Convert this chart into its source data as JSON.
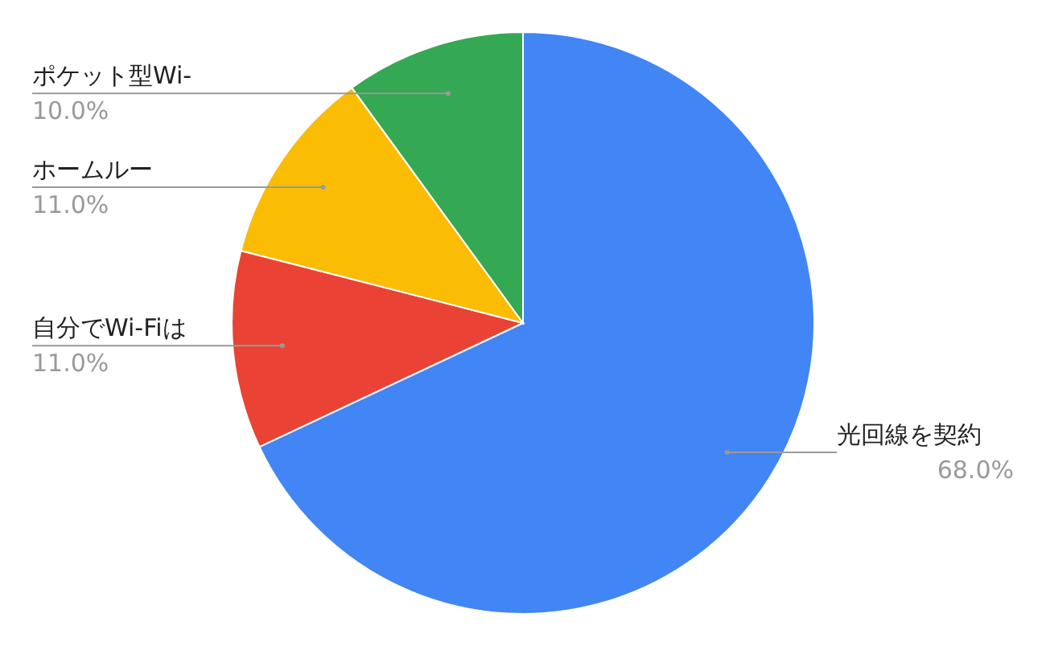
{
  "chart_data": {
    "type": "pie",
    "categories": [
      "光回線を契約",
      "自分でWi-Fiは",
      "ホームルー",
      "ポケット型Wi-"
    ],
    "values": [
      68,
      11,
      11,
      10
    ],
    "value_labels": [
      "68.0%",
      "11.0%",
      "11.0%",
      "10.0%"
    ],
    "colors": [
      "#4285f4",
      "#ea4335",
      "#fbbc04",
      "#34a853"
    ]
  }
}
